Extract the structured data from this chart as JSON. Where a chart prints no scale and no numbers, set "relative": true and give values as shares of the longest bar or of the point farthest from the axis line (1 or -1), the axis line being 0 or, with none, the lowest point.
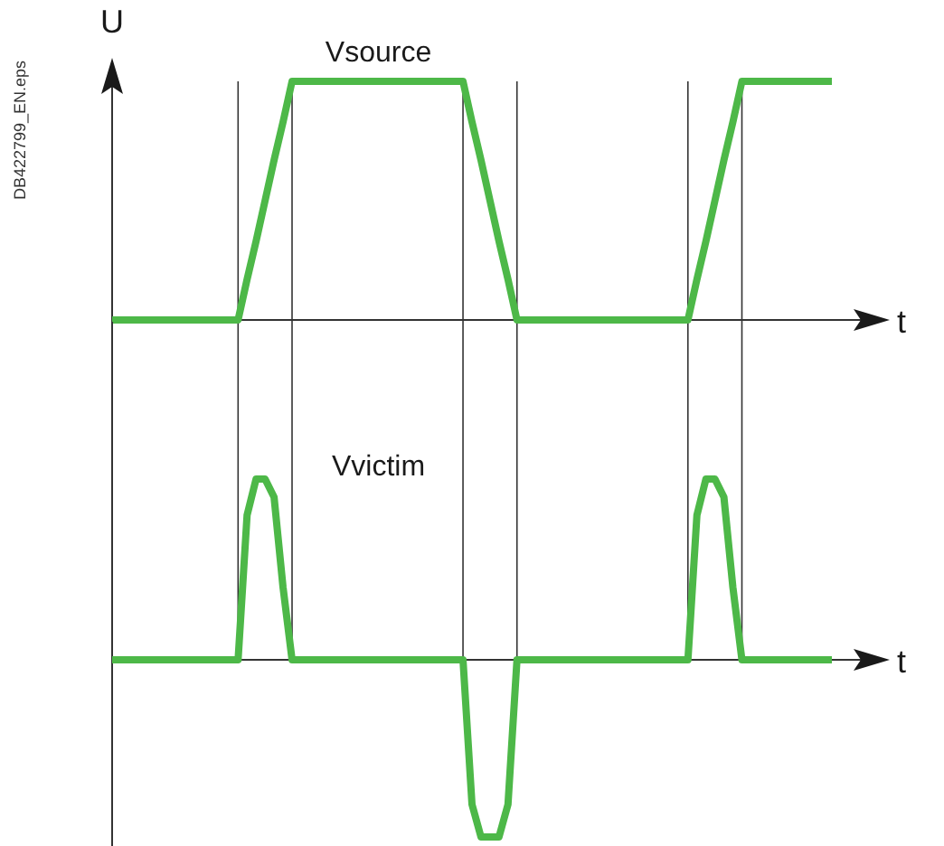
{
  "chart_data": [
    {
      "type": "line",
      "relative": true,
      "grid": "x",
      "ylabel": "U",
      "xlabel": "t",
      "annotations": [
        "DB422799_EN.eps"
      ],
      "categories": [
        null,
        null,
        null,
        null,
        null,
        null,
        null,
        null,
        null,
        null,
        null,
        null,
        null,
        null,
        null,
        null,
        null,
        null,
        null,
        null,
        null,
        null,
        null,
        null,
        null,
        null,
        null,
        null,
        null,
        null,
        null,
        null,
        null,
        null,
        null,
        null,
        null,
        null,
        null,
        null,
        null,
        null,
        null,
        null,
        null,
        null,
        null,
        null,
        null,
        null,
        null,
        null,
        null,
        null,
        null,
        null,
        null,
        null,
        null,
        null,
        null,
        null,
        null,
        null,
        null,
        null,
        null,
        null,
        null,
        null,
        null,
        null,
        null,
        null,
        null,
        null,
        null,
        null,
        null,
        null,
        null
      ],
      "series": [
        {
          "name": "Vsource",
          "color": "#4db848",
          "values": [
            0,
            0,
            0,
            0,
            0,
            0,
            0,
            0,
            0,
            0,
            0,
            0,
            0,
            0,
            0,
            0.17,
            0.33,
            0.5,
            0.67,
            0.83,
            1,
            1,
            1,
            1,
            1,
            1,
            1,
            1,
            1,
            1,
            1,
            1,
            1,
            1,
            1,
            1,
            1,
            1,
            1,
            1,
            0.83,
            0.67,
            0.5,
            0.33,
            0.17,
            0,
            0,
            0,
            0,
            0,
            0,
            0,
            0,
            0,
            0,
            0,
            0,
            0,
            0,
            0,
            0,
            0,
            0,
            0,
            0,
            0.17,
            0.33,
            0.5,
            0.67,
            0.83,
            1,
            1,
            1,
            1,
            1,
            1,
            1,
            1,
            1,
            1,
            1
          ]
        }
      ]
    },
    {
      "type": "line",
      "relative": true,
      "xlabel": "t",
      "categories": [
        null,
        null,
        null,
        null,
        null,
        null,
        null,
        null,
        null,
        null,
        null,
        null,
        null,
        null,
        null,
        null,
        null,
        null,
        null,
        null,
        null,
        null,
        null,
        null,
        null,
        null,
        null,
        null,
        null,
        null,
        null,
        null,
        null,
        null,
        null,
        null,
        null,
        null,
        null,
        null,
        null,
        null,
        null,
        null,
        null,
        null,
        null,
        null,
        null,
        null,
        null,
        null,
        null,
        null,
        null,
        null,
        null,
        null,
        null,
        null,
        null,
        null,
        null,
        null,
        null,
        null,
        null,
        null,
        null,
        null,
        null,
        null,
        null,
        null,
        null,
        null,
        null,
        null,
        null,
        null,
        null
      ],
      "series": [
        {
          "name": "Vvictim",
          "color": "#4db848",
          "values": [
            0,
            0,
            0,
            0,
            0,
            0,
            0,
            0,
            0,
            0,
            0,
            0,
            0,
            0,
            0,
            0.8,
            1,
            1,
            0.9,
            0.4,
            0,
            0,
            0,
            0,
            0,
            0,
            0,
            0,
            0,
            0,
            0,
            0,
            0,
            0,
            0,
            0,
            0,
            0,
            0,
            0,
            -0.8,
            -0.98,
            -0.98,
            -0.98,
            -0.8,
            0,
            0,
            0,
            0,
            0,
            0,
            0,
            0,
            0,
            0,
            0,
            0,
            0,
            0,
            0,
            0,
            0,
            0,
            0,
            0,
            0.8,
            1,
            1,
            0.9,
            0.4,
            0,
            0,
            0,
            0,
            0,
            0,
            0,
            0,
            0,
            0,
            0
          ]
        }
      ]
    }
  ]
}
